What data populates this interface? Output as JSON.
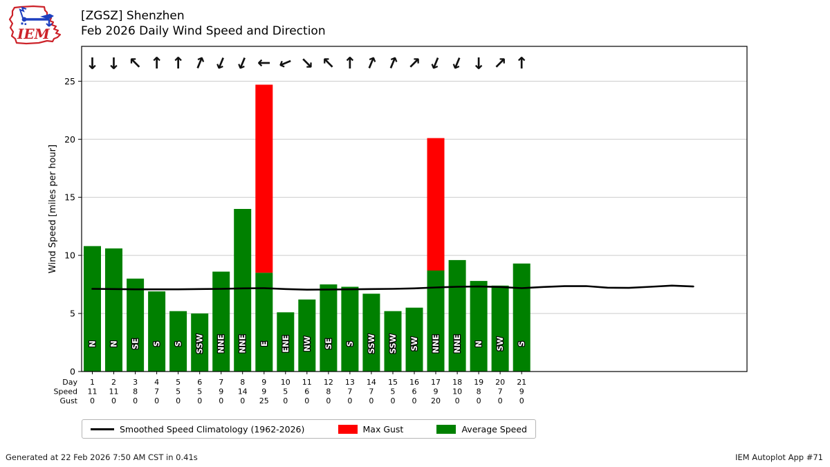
{
  "header": {
    "logo_text": "IEM",
    "title_line1": "[ZGSZ] Shenzhen",
    "title_line2": "Feb 2026 Daily Wind Speed and Direction"
  },
  "chart_data": {
    "type": "bar",
    "title": "Feb 2026 Daily Wind Speed and Direction",
    "station": "[ZGSZ] Shenzhen",
    "ylabel": "Wind Speed [miles per hour]",
    "ylim": [
      0,
      28
    ],
    "yticks": [
      0,
      5,
      10,
      15,
      20,
      25
    ],
    "xlim": [
      0.5,
      31.5
    ],
    "grid": "horizontal",
    "legend_position": "bottom",
    "days": [
      1,
      2,
      3,
      4,
      5,
      6,
      7,
      8,
      9,
      10,
      11,
      12,
      13,
      14,
      15,
      16,
      17,
      18,
      19,
      20,
      21
    ],
    "directions": [
      "N",
      "N",
      "SE",
      "S",
      "S",
      "SSW",
      "NNE",
      "NNE",
      "E",
      "ENE",
      "NW",
      "SE",
      "S",
      "SSW",
      "SSW",
      "SW",
      "NNE",
      "NNE",
      "N",
      "SW",
      "S"
    ],
    "series": [
      {
        "name": "Average Speed",
        "color": "#008000",
        "values": [
          10.8,
          10.6,
          8.0,
          6.9,
          5.2,
          5.0,
          8.6,
          14.0,
          8.5,
          5.1,
          6.2,
          7.5,
          7.3,
          6.7,
          5.2,
          5.5,
          8.7,
          9.6,
          7.8,
          7.4,
          9.3
        ]
      },
      {
        "name": "Max Gust",
        "color": "#ff0000",
        "values": [
          0,
          0,
          0,
          0,
          0,
          0,
          0,
          0,
          24.7,
          0,
          0,
          0,
          0,
          0,
          0,
          0,
          20.1,
          0,
          0,
          0,
          0
        ]
      }
    ],
    "climatology": {
      "name": "Smoothed Speed Climatology (1962-2026)",
      "color": "#000000",
      "x": [
        1,
        2,
        3,
        4,
        5,
        6,
        7,
        8,
        9,
        10,
        11,
        12,
        13,
        14,
        15,
        16,
        17,
        18,
        19,
        20,
        21,
        22,
        23,
        24,
        25,
        26,
        27,
        28,
        29
      ],
      "values": [
        7.12,
        7.1,
        7.08,
        7.08,
        7.08,
        7.1,
        7.12,
        7.16,
        7.18,
        7.1,
        7.05,
        7.06,
        7.08,
        7.1,
        7.12,
        7.16,
        7.24,
        7.3,
        7.32,
        7.28,
        7.18,
        7.28,
        7.35,
        7.36,
        7.22,
        7.2,
        7.3,
        7.4,
        7.32
      ]
    },
    "table_rows": [
      {
        "label": "Day",
        "values": [
          1,
          2,
          3,
          4,
          5,
          6,
          7,
          8,
          9,
          10,
          11,
          12,
          13,
          14,
          15,
          16,
          17,
          18,
          19,
          20,
          21
        ]
      },
      {
        "label": "Speed",
        "values": [
          11,
          11,
          8,
          7,
          5,
          5,
          9,
          14,
          9,
          5,
          6,
          8,
          7,
          7,
          5,
          6,
          9,
          10,
          8,
          7,
          9
        ]
      },
      {
        "label": "Gust",
        "values": [
          0,
          0,
          0,
          0,
          0,
          0,
          0,
          0,
          25,
          0,
          0,
          0,
          0,
          0,
          0,
          0,
          20,
          0,
          0,
          0,
          0
        ]
      }
    ]
  },
  "legend": {
    "items": [
      {
        "label": "Smoothed Speed Climatology (1962-2026)",
        "swatch": "line",
        "color": "#000000"
      },
      {
        "label": "Max Gust",
        "swatch": "rect",
        "color": "#ff0000"
      },
      {
        "label": "Average Speed",
        "swatch": "rect",
        "color": "#008000"
      }
    ]
  },
  "footer": {
    "left": "Generated at 22 Feb 2026 7:50 AM CST in 0.41s",
    "right": "IEM Autoplot App #71"
  }
}
